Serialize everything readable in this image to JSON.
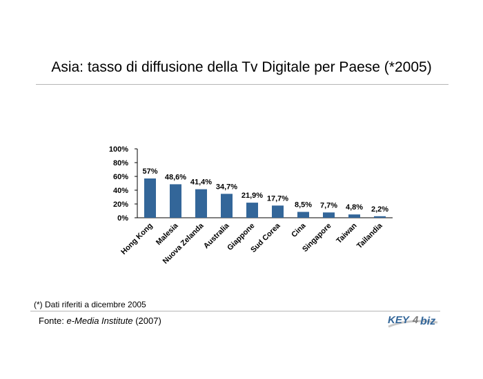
{
  "title": "Asia: tasso di diffusione della Tv Digitale per Paese (*2005)",
  "footnote": "(*) Dati riferiti a dicembre 2005",
  "source": {
    "prefix": "Fonte: ",
    "name": "e-Media Institute",
    "year": " (2007)"
  },
  "logo": {
    "text_a": "KEY",
    "text_b": "4",
    "text_c": "biz"
  },
  "colors": {
    "bar": "#336699",
    "logo_a": "#336699",
    "logo_b": "#7a7a7a"
  },
  "chart_data": {
    "type": "bar",
    "categories": [
      "Hong Kong",
      "Malesia",
      "Nuova Zelanda",
      "Australia",
      "Giappone",
      "Sud Corea",
      "Cina",
      "Singapore",
      "Taiwan",
      "Tailandia"
    ],
    "values": [
      57,
      48.6,
      41.4,
      34.7,
      21.9,
      17.7,
      8.5,
      7.7,
      4.8,
      2.2
    ],
    "value_labels": [
      "57%",
      "48,6%",
      "41,4%",
      "34,7%",
      "21,9%",
      "17,7%",
      "8,5%",
      "7,7%",
      "4,8%",
      "2,2%"
    ],
    "ylim": [
      0,
      100
    ],
    "yticks": [
      0,
      20,
      40,
      60,
      80,
      100
    ],
    "ytick_labels": [
      "0%",
      "20%",
      "40%",
      "60%",
      "80%",
      "100%"
    ],
    "grid": false,
    "legend": "none"
  }
}
